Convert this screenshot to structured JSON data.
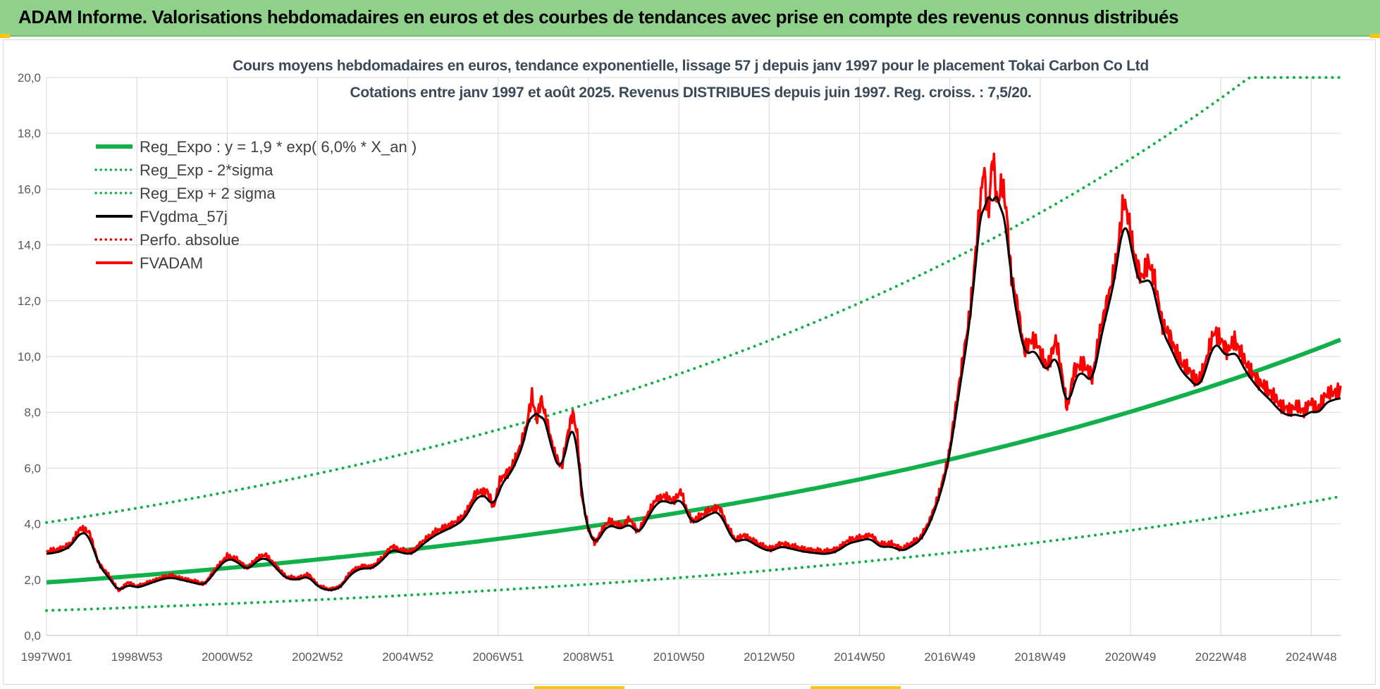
{
  "header": {
    "title": "ADAM Informe. Valorisations hebdomadaires en euros et des courbes de tendances avec prise en compte des revenus connus distribués"
  },
  "chart_data": {
    "type": "line",
    "title": "Cours moyens hebdomadaires en euros, tendance exponentielle, lissage 57 j depuis janv 1997  pour le placement Tokai Carbon Co Ltd",
    "subtitle": "Cotations entre janv 1997 et août 2025.  Revenus DISTRIBUES depuis juin 1997.  Reg. croiss. : 7,5/20.",
    "xlabel": "",
    "ylabel": "",
    "ylim": [
      0,
      20
    ],
    "xlim": [
      1997.0,
      2025.65
    ],
    "yticks": [
      "0,0",
      "2,0",
      "4,0",
      "6,0",
      "8,0",
      "10,0",
      "12,0",
      "14,0",
      "16,0",
      "18,0",
      "20,0"
    ],
    "xticks": [
      {
        "label": "1997W01",
        "x": 1997.0
      },
      {
        "label": "1998W53",
        "x": 1999.0
      },
      {
        "label": "2000W52",
        "x": 2001.0
      },
      {
        "label": "2002W52",
        "x": 2003.0
      },
      {
        "label": "2004W52",
        "x": 2005.0
      },
      {
        "label": "2006W51",
        "x": 2007.0
      },
      {
        "label": "2008W51",
        "x": 2009.0
      },
      {
        "label": "2010W50",
        "x": 2011.0
      },
      {
        "label": "2012W50",
        "x": 2013.0
      },
      {
        "label": "2014W50",
        "x": 2015.0
      },
      {
        "label": "2016W49",
        "x": 2017.0
      },
      {
        "label": "2018W49",
        "x": 2019.0
      },
      {
        "label": "2020W49",
        "x": 2021.0
      },
      {
        "label": "2022W48",
        "x": 2023.0
      },
      {
        "label": "2024W48",
        "x": 2025.0
      }
    ],
    "grid": true,
    "legend_position": "top-left",
    "trend": {
      "a": 1.9,
      "rate": 0.06,
      "sigma_factor_low": 0.47,
      "sigma_factor_high": 2.13,
      "clip_max": 20
    },
    "series": [
      {
        "name": "Reg_Expo : y = 1,9 * exp( 6,0% *  X_an )",
        "style": "solid",
        "color": "#12b04a",
        "width": 6
      },
      {
        "name": "Reg_Exp - 2*sigma",
        "style": "dotted",
        "color": "#12b04a",
        "width": 4
      },
      {
        "name": "Reg_Exp + 2 sigma",
        "style": "dotted",
        "color": "#12b04a",
        "width": 4
      },
      {
        "name": "FVgdma_57j",
        "style": "solid",
        "color": "#000000",
        "width": 3
      },
      {
        "name": "Perfo. absolue",
        "style": "dotted",
        "color": "#e00000",
        "width": 3
      },
      {
        "name": "FVADAM",
        "style": "solid",
        "color": "#ff0000",
        "width": 3.5
      }
    ],
    "price_points": [
      [
        1997.0,
        3.0
      ],
      [
        1997.3,
        3.1
      ],
      [
        1997.55,
        3.3
      ],
      [
        1997.75,
        3.85
      ],
      [
        1997.95,
        3.7
      ],
      [
        1998.15,
        2.6
      ],
      [
        1998.4,
        2.1
      ],
      [
        1998.6,
        1.6
      ],
      [
        1998.8,
        1.9
      ],
      [
        1999.0,
        1.75
      ],
      [
        1999.25,
        1.9
      ],
      [
        1999.5,
        2.05
      ],
      [
        1999.75,
        2.15
      ],
      [
        2000.0,
        2.05
      ],
      [
        2000.25,
        1.95
      ],
      [
        2000.5,
        1.85
      ],
      [
        2000.75,
        2.4
      ],
      [
        2001.0,
        2.85
      ],
      [
        2001.2,
        2.75
      ],
      [
        2001.45,
        2.4
      ],
      [
        2001.65,
        2.75
      ],
      [
        2001.85,
        2.9
      ],
      [
        2002.05,
        2.55
      ],
      [
        2002.3,
        2.1
      ],
      [
        2002.55,
        2.05
      ],
      [
        2002.8,
        2.2
      ],
      [
        2003.0,
        1.8
      ],
      [
        2003.25,
        1.65
      ],
      [
        2003.5,
        1.75
      ],
      [
        2003.75,
        2.3
      ],
      [
        2004.0,
        2.5
      ],
      [
        2004.2,
        2.45
      ],
      [
        2004.45,
        2.8
      ],
      [
        2004.65,
        3.2
      ],
      [
        2004.85,
        3.05
      ],
      [
        2005.1,
        3.0
      ],
      [
        2005.35,
        3.4
      ],
      [
        2005.6,
        3.7
      ],
      [
        2005.85,
        3.9
      ],
      [
        2006.1,
        4.1
      ],
      [
        2006.3,
        4.4
      ],
      [
        2006.5,
        5.1
      ],
      [
        2006.75,
        5.2
      ],
      [
        2006.9,
        4.6
      ],
      [
        2007.05,
        5.6
      ],
      [
        2007.25,
        5.9
      ],
      [
        2007.45,
        6.6
      ],
      [
        2007.6,
        7.3
      ],
      [
        2007.75,
        8.6
      ],
      [
        2007.85,
        7.7
      ],
      [
        2007.95,
        8.5
      ],
      [
        2008.1,
        7.5
      ],
      [
        2008.25,
        6.5
      ],
      [
        2008.4,
        6.0
      ],
      [
        2008.55,
        7.3
      ],
      [
        2008.65,
        8.0
      ],
      [
        2008.75,
        7.2
      ],
      [
        2008.85,
        5.0
      ],
      [
        2009.0,
        3.8
      ],
      [
        2009.15,
        3.3
      ],
      [
        2009.3,
        3.8
      ],
      [
        2009.45,
        4.1
      ],
      [
        2009.6,
        4.0
      ],
      [
        2009.75,
        3.9
      ],
      [
        2009.9,
        4.2
      ],
      [
        2010.1,
        3.7
      ],
      [
        2010.3,
        4.3
      ],
      [
        2010.5,
        4.9
      ],
      [
        2010.7,
        5.0
      ],
      [
        2010.9,
        4.8
      ],
      [
        2011.05,
        5.2
      ],
      [
        2011.15,
        4.6
      ],
      [
        2011.3,
        4.1
      ],
      [
        2011.5,
        4.3
      ],
      [
        2011.7,
        4.5
      ],
      [
        2011.9,
        4.6
      ],
      [
        2012.05,
        4.0
      ],
      [
        2012.25,
        3.4
      ],
      [
        2012.45,
        3.6
      ],
      [
        2012.65,
        3.4
      ],
      [
        2012.85,
        3.2
      ],
      [
        2013.05,
        3.1
      ],
      [
        2013.25,
        3.3
      ],
      [
        2013.5,
        3.2
      ],
      [
        2013.75,
        3.1
      ],
      [
        2014.0,
        3.05
      ],
      [
        2014.25,
        3.0
      ],
      [
        2014.5,
        3.1
      ],
      [
        2014.75,
        3.4
      ],
      [
        2015.0,
        3.5
      ],
      [
        2015.25,
        3.6
      ],
      [
        2015.45,
        3.25
      ],
      [
        2015.7,
        3.3
      ],
      [
        2015.95,
        3.1
      ],
      [
        2016.15,
        3.3
      ],
      [
        2016.35,
        3.5
      ],
      [
        2016.55,
        4.1
      ],
      [
        2016.75,
        5.0
      ],
      [
        2016.95,
        6.2
      ],
      [
        2017.1,
        7.8
      ],
      [
        2017.25,
        9.5
      ],
      [
        2017.45,
        11.6
      ],
      [
        2017.6,
        14.2
      ],
      [
        2017.75,
        16.8
      ],
      [
        2017.85,
        15.0
      ],
      [
        2017.95,
        17.3
      ],
      [
        2018.05,
        15.4
      ],
      [
        2018.15,
        16.2
      ],
      [
        2018.25,
        15.3
      ],
      [
        2018.35,
        13.0
      ],
      [
        2018.5,
        11.8
      ],
      [
        2018.65,
        10.2
      ],
      [
        2018.8,
        10.6
      ],
      [
        2018.95,
        10.4
      ],
      [
        2019.15,
        9.6
      ],
      [
        2019.35,
        10.6
      ],
      [
        2019.5,
        9.2
      ],
      [
        2019.6,
        8.1
      ],
      [
        2019.75,
        9.5
      ],
      [
        2019.95,
        9.8
      ],
      [
        2020.15,
        9.2
      ],
      [
        2020.35,
        11.1
      ],
      [
        2020.55,
        12.4
      ],
      [
        2020.7,
        13.6
      ],
      [
        2020.85,
        15.6
      ],
      [
        2020.95,
        15.0
      ],
      [
        2021.1,
        13.5
      ],
      [
        2021.25,
        12.8
      ],
      [
        2021.4,
        13.4
      ],
      [
        2021.55,
        12.6
      ],
      [
        2021.7,
        11.2
      ],
      [
        2021.85,
        10.8
      ],
      [
        2022.0,
        10.2
      ],
      [
        2022.15,
        9.7
      ],
      [
        2022.3,
        9.5
      ],
      [
        2022.5,
        9.1
      ],
      [
        2022.65,
        9.7
      ],
      [
        2022.85,
        10.9
      ],
      [
        2023.0,
        10.6
      ],
      [
        2023.15,
        10.2
      ],
      [
        2023.3,
        10.6
      ],
      [
        2023.5,
        9.9
      ],
      [
        2023.7,
        9.4
      ],
      [
        2023.9,
        9.0
      ],
      [
        2024.1,
        8.7
      ],
      [
        2024.3,
        8.3
      ],
      [
        2024.5,
        8.1
      ],
      [
        2024.7,
        8.2
      ],
      [
        2024.85,
        8.0
      ],
      [
        2025.0,
        8.4
      ],
      [
        2025.15,
        8.1
      ],
      [
        2025.3,
        8.6
      ],
      [
        2025.5,
        8.7
      ],
      [
        2025.65,
        8.8
      ]
    ]
  }
}
